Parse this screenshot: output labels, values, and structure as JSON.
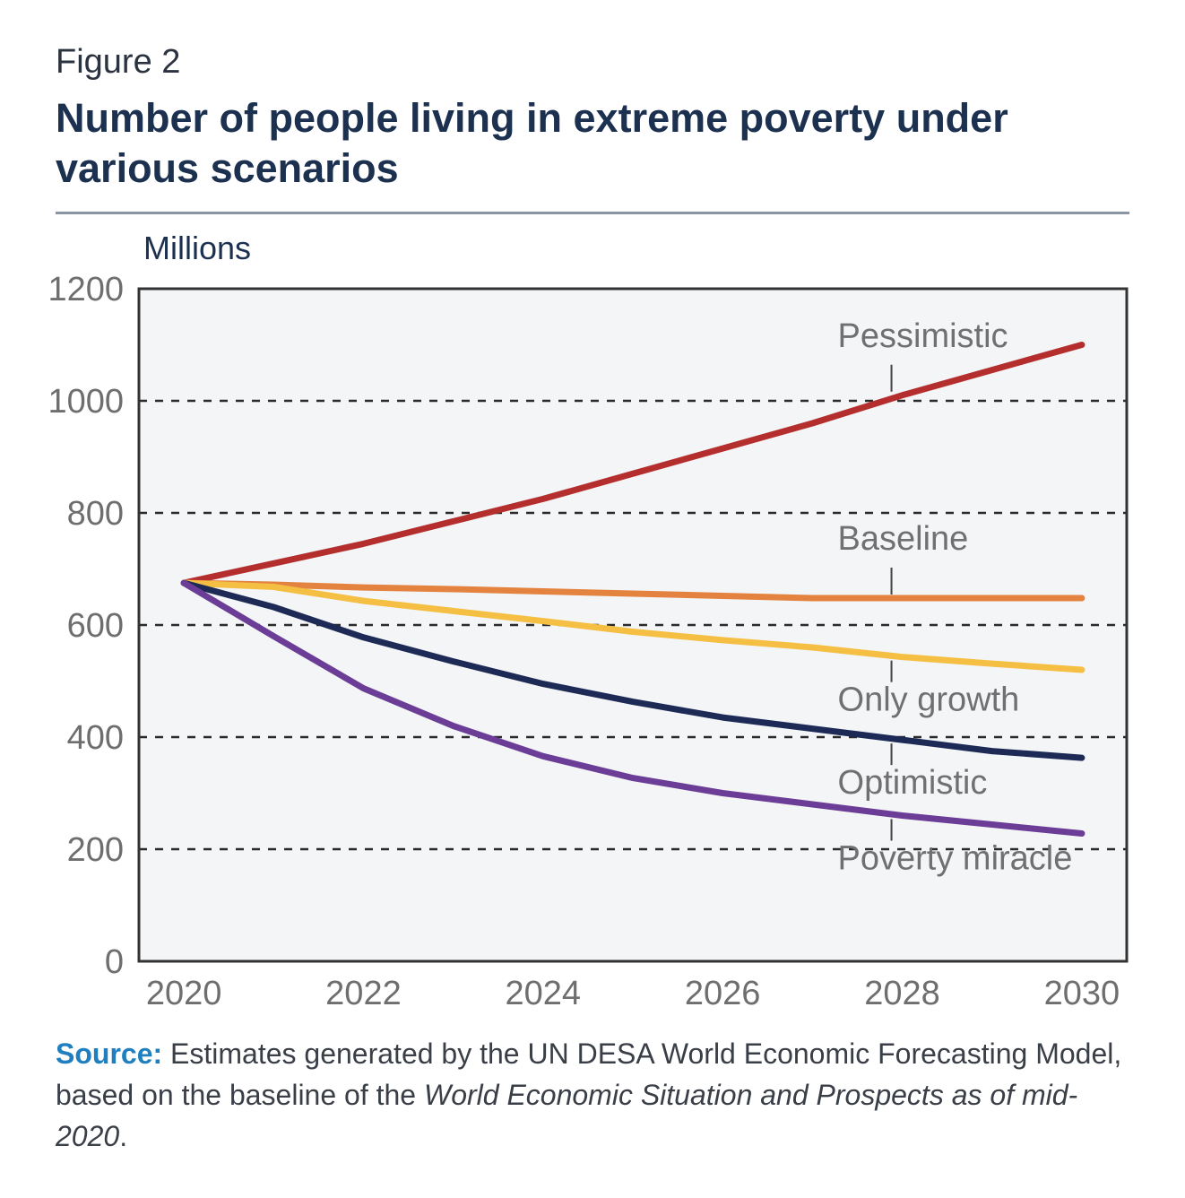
{
  "figure_label": "Figure 2",
  "title": "Number of people living in extreme poverty under various scenarios",
  "source": {
    "label": "Source:",
    "text": " Estimates generated by the UN DESA World Economic Forecasting Model, based on the baseline of the ",
    "italic": "World Economic Situation and Prospects as of mid-2020",
    "end": "."
  },
  "colors": {
    "plot_background": "#f4f5f7",
    "title": "#1c3150",
    "source_label": "#1f7fbf"
  },
  "chart_data": {
    "type": "line",
    "ylabel": "Millions",
    "xlabel": "",
    "x": [
      2020,
      2021,
      2022,
      2023,
      2024,
      2025,
      2026,
      2027,
      2028,
      2029,
      2030
    ],
    "xlim": [
      2019.5,
      2030.5
    ],
    "ylim": [
      0,
      1200
    ],
    "x_ticks": [
      "2020",
      "2022",
      "2024",
      "2026",
      "2028",
      "2030"
    ],
    "y_ticks": [
      "0",
      "200",
      "400",
      "600",
      "800",
      "1000",
      "1200"
    ],
    "grid": "dashed horizontal",
    "series": [
      {
        "name": "Pessimistic",
        "color": "#b52e2e",
        "values": [
          675,
          710,
          745,
          785,
          825,
          870,
          915,
          960,
          1010,
          1055,
          1100
        ],
        "label_x": 2028
      },
      {
        "name": "Baseline",
        "color": "#e3833f",
        "values": [
          675,
          672,
          667,
          664,
          660,
          656,
          652,
          648,
          648,
          648,
          648
        ],
        "label_x": 2028
      },
      {
        "name": "Only growth",
        "color": "#f5bf44",
        "values": [
          675,
          668,
          643,
          625,
          607,
          588,
          573,
          560,
          543,
          531,
          520
        ],
        "label_x": 2028
      },
      {
        "name": "Optimistic",
        "color": "#1c2a55",
        "values": [
          675,
          632,
          578,
          535,
          495,
          463,
          435,
          415,
          395,
          375,
          363
        ],
        "label_x": 2028
      },
      {
        "name": "Poverty miracle",
        "color": "#6b3d96",
        "values": [
          675,
          580,
          487,
          420,
          366,
          327,
          300,
          280,
          260,
          244,
          228
        ],
        "label_x": 2028
      }
    ]
  }
}
